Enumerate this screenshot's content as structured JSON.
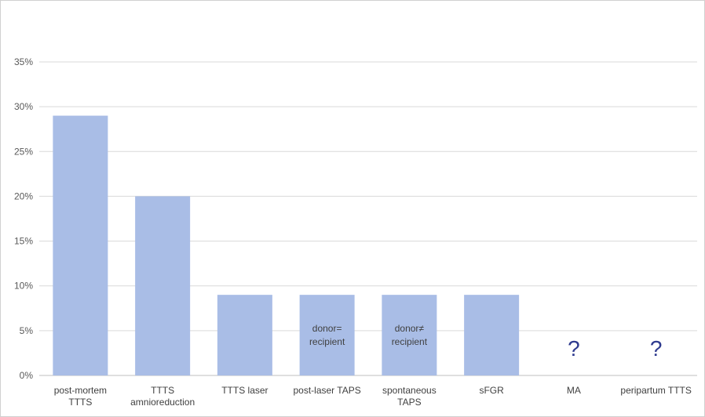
{
  "chart_data": {
    "type": "bar",
    "title": "",
    "xlabel": "",
    "ylabel": "",
    "ylim": [
      0,
      0.35
    ],
    "y_ticks": [
      0,
      0.05,
      0.1,
      0.15,
      0.2,
      0.25,
      0.3,
      0.35
    ],
    "y_tick_labels": [
      "0%",
      "5%",
      "10%",
      "15%",
      "20%",
      "25%",
      "30%",
      "35%"
    ],
    "grid": true,
    "legend": "none",
    "categories": [
      [
        "post-mortem",
        "TTTS"
      ],
      [
        "TTTS",
        "amnioreduction"
      ],
      [
        "TTTS laser"
      ],
      [
        "post-laser TAPS"
      ],
      [
        "spontaneous",
        "TAPS"
      ],
      [
        "sFGR"
      ],
      [
        "MA"
      ],
      [
        "peripartum TTTS"
      ]
    ],
    "values": [
      0.29,
      0.2,
      0.09,
      0.09,
      0.09,
      0.09,
      null,
      null
    ],
    "bar_annotations": [
      null,
      null,
      null,
      [
        "donor=",
        "recipient"
      ],
      [
        "donor≠",
        "recipient"
      ],
      null,
      null,
      null
    ],
    "unknown_markers": [
      null,
      null,
      null,
      null,
      null,
      null,
      "?",
      "?"
    ],
    "colors": {
      "bar": "#a9bde6",
      "grid": "#d9d9d9",
      "axis": "#bfbfbf",
      "question": "#2f3b8f"
    }
  }
}
